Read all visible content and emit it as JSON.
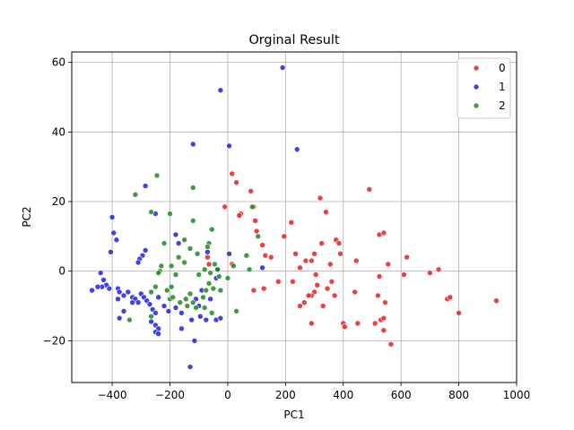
{
  "chart_data": {
    "type": "scatter",
    "title": "Orginal Result",
    "xlabel": "PC1",
    "ylabel": "PC2",
    "xlim": [
      -540,
      1000
    ],
    "ylim": [
      -32,
      63
    ],
    "xticks": [
      -400,
      -200,
      0,
      200,
      400,
      600,
      800,
      1000
    ],
    "yticks": [
      -20,
      0,
      20,
      40,
      60
    ],
    "grid": true,
    "legend_position": "top-right",
    "series": [
      {
        "name": "0",
        "color": "#e82020",
        "points": [
          [
            15,
            28
          ],
          [
            30,
            25.5
          ],
          [
            45,
            16.5
          ],
          [
            80,
            23
          ],
          [
            90,
            18.5
          ],
          [
            95,
            14.5
          ],
          [
            100,
            11.5
          ],
          [
            120,
            7.5
          ],
          [
            130,
            4.5
          ],
          [
            150,
            4
          ],
          [
            195,
            10
          ],
          [
            220,
            14
          ],
          [
            235,
            5
          ],
          [
            250,
            1
          ],
          [
            270,
            3
          ],
          [
            290,
            3
          ],
          [
            300,
            5
          ],
          [
            320,
            21
          ],
          [
            340,
            17
          ],
          [
            325,
            8
          ],
          [
            305,
            -1
          ],
          [
            310,
            -4
          ],
          [
            300,
            -6
          ],
          [
            290,
            -7
          ],
          [
            265,
            -9
          ],
          [
            250,
            -10
          ],
          [
            290,
            -15
          ],
          [
            330,
            -10
          ],
          [
            345,
            -5
          ],
          [
            355,
            2
          ],
          [
            360,
            -3
          ],
          [
            370,
            -7
          ],
          [
            375,
            9
          ],
          [
            385,
            8
          ],
          [
            390,
            5
          ],
          [
            445,
            3
          ],
          [
            440,
            -6
          ],
          [
            450,
            -15
          ],
          [
            490,
            23.5
          ],
          [
            525,
            10.5
          ],
          [
            540,
            11
          ],
          [
            555,
            2
          ],
          [
            565,
            -21
          ],
          [
            620,
            4
          ],
          [
            610,
            -1
          ],
          [
            700,
            -0.5
          ],
          [
            730,
            0.5
          ],
          [
            760,
            -8
          ],
          [
            770,
            -7.5
          ],
          [
            800,
            -12
          ],
          [
            930,
            -8.5
          ],
          [
            400,
            -15
          ],
          [
            405,
            -16
          ],
          [
            510,
            -15
          ],
          [
            520,
            -7
          ],
          [
            525,
            -1.5
          ],
          [
            530,
            -14
          ],
          [
            540,
            -13.5
          ],
          [
            545,
            -9
          ],
          [
            540,
            -17
          ],
          [
            -70,
            4
          ],
          [
            -65,
            2
          ],
          [
            15,
            2
          ],
          [
            -10,
            18.5
          ],
          [
            40,
            16
          ],
          [
            90,
            -5.5
          ],
          [
            125,
            -5
          ],
          [
            175,
            -3
          ],
          [
            225,
            -3
          ],
          [
            280,
            -7
          ]
        ]
      },
      {
        "name": "1",
        "color": "#2020e8",
        "points": [
          [
            190,
            58.5
          ],
          [
            -25,
            52
          ],
          [
            5,
            36
          ],
          [
            -120,
            36.5
          ],
          [
            240,
            35
          ],
          [
            -285,
            24.5
          ],
          [
            -400,
            15.5
          ],
          [
            -405,
            5.5
          ],
          [
            -395,
            11
          ],
          [
            -385,
            9
          ],
          [
            -285,
            6
          ],
          [
            -295,
            4.5
          ],
          [
            -305,
            3.5
          ],
          [
            -310,
            2.5
          ],
          [
            -250,
            16.5
          ],
          [
            -180,
            10.5
          ],
          [
            -170,
            8
          ],
          [
            -70,
            5.5
          ],
          [
            5,
            5
          ],
          [
            -35,
            0.5
          ],
          [
            -40,
            -2
          ],
          [
            -440,
            -0.5
          ],
          [
            -430,
            -2.5
          ],
          [
            -420,
            -4
          ],
          [
            -435,
            -4.5
          ],
          [
            -470,
            -5.5
          ],
          [
            -450,
            -4.5
          ],
          [
            -410,
            -5
          ],
          [
            -380,
            -5
          ],
          [
            -375,
            -6
          ],
          [
            -360,
            -7
          ],
          [
            -345,
            -6
          ],
          [
            -330,
            -7.5
          ],
          [
            -320,
            -8
          ],
          [
            -310,
            -9
          ],
          [
            -300,
            -6.5
          ],
          [
            -290,
            -7.5
          ],
          [
            -280,
            -8.5
          ],
          [
            -270,
            -9.5
          ],
          [
            -260,
            -11
          ],
          [
            -250,
            -12
          ],
          [
            -240,
            -7.5
          ],
          [
            -220,
            -10
          ],
          [
            -205,
            -11.5
          ],
          [
            -380,
            -8
          ],
          [
            -375,
            -13.5
          ],
          [
            -360,
            -11.5
          ],
          [
            -330,
            -9
          ],
          [
            -265,
            -14.5
          ],
          [
            -250,
            -15.5
          ],
          [
            -240,
            -16.5
          ],
          [
            -250,
            -17.5
          ],
          [
            -240,
            -18
          ],
          [
            -160,
            -16.5
          ],
          [
            -115,
            -20
          ],
          [
            -130,
            -27.5
          ],
          [
            -125,
            -14
          ],
          [
            -95,
            -13
          ],
          [
            -75,
            -14
          ],
          [
            -40,
            -14
          ],
          [
            -25,
            -13.5
          ],
          [
            -180,
            -10.5
          ],
          [
            -160,
            -12
          ],
          [
            -100,
            -10
          ],
          [
            -90,
            -5.5
          ],
          [
            -110,
            -8
          ],
          [
            -60,
            -8
          ],
          [
            120,
            1
          ]
        ]
      },
      {
        "name": "2",
        "color": "#218a21",
        "points": [
          [
            -245,
            27.5
          ],
          [
            -320,
            22
          ],
          [
            -265,
            17
          ],
          [
            -200,
            16.5
          ],
          [
            -120,
            24
          ],
          [
            -120,
            14.5
          ],
          [
            -55,
            12
          ],
          [
            -65,
            8
          ],
          [
            -70,
            7
          ],
          [
            -150,
            9
          ],
          [
            -130,
            6.5
          ],
          [
            -220,
            8
          ],
          [
            -195,
            1.5
          ],
          [
            -230,
            1.5
          ],
          [
            -235,
            0
          ],
          [
            -240,
            -0.5
          ],
          [
            -180,
            -1
          ],
          [
            -170,
            4
          ],
          [
            -150,
            2.5
          ],
          [
            -105,
            5
          ],
          [
            -100,
            -1
          ],
          [
            -60,
            -0.5
          ],
          [
            -80,
            0.5
          ],
          [
            -45,
            2
          ],
          [
            -35,
            0.5
          ],
          [
            -30,
            -1.5
          ],
          [
            -25,
            -5.5
          ],
          [
            -195,
            -4.5
          ],
          [
            -210,
            -5.5
          ],
          [
            -250,
            -4.5
          ],
          [
            -265,
            -6
          ],
          [
            -200,
            -8
          ],
          [
            -190,
            -7.5
          ],
          [
            -165,
            -9
          ],
          [
            -145,
            -8
          ],
          [
            -130,
            -6.5
          ],
          [
            -120,
            -9
          ],
          [
            -110,
            -10.5
          ],
          [
            -140,
            -10
          ],
          [
            -85,
            -7.5
          ],
          [
            -75,
            -5.5
          ],
          [
            -65,
            -3.5
          ],
          [
            -50,
            -5
          ],
          [
            -80,
            -10.5
          ],
          [
            -55,
            -12
          ],
          [
            -340,
            -14
          ],
          [
            -265,
            -13
          ],
          [
            30,
            -11.5
          ],
          [
            85,
            18.5
          ],
          [
            105,
            10
          ],
          [
            65,
            4.5
          ],
          [
            75,
            0.5
          ],
          [
            20,
            1.5
          ],
          [
            0,
            -2
          ]
        ]
      }
    ]
  }
}
